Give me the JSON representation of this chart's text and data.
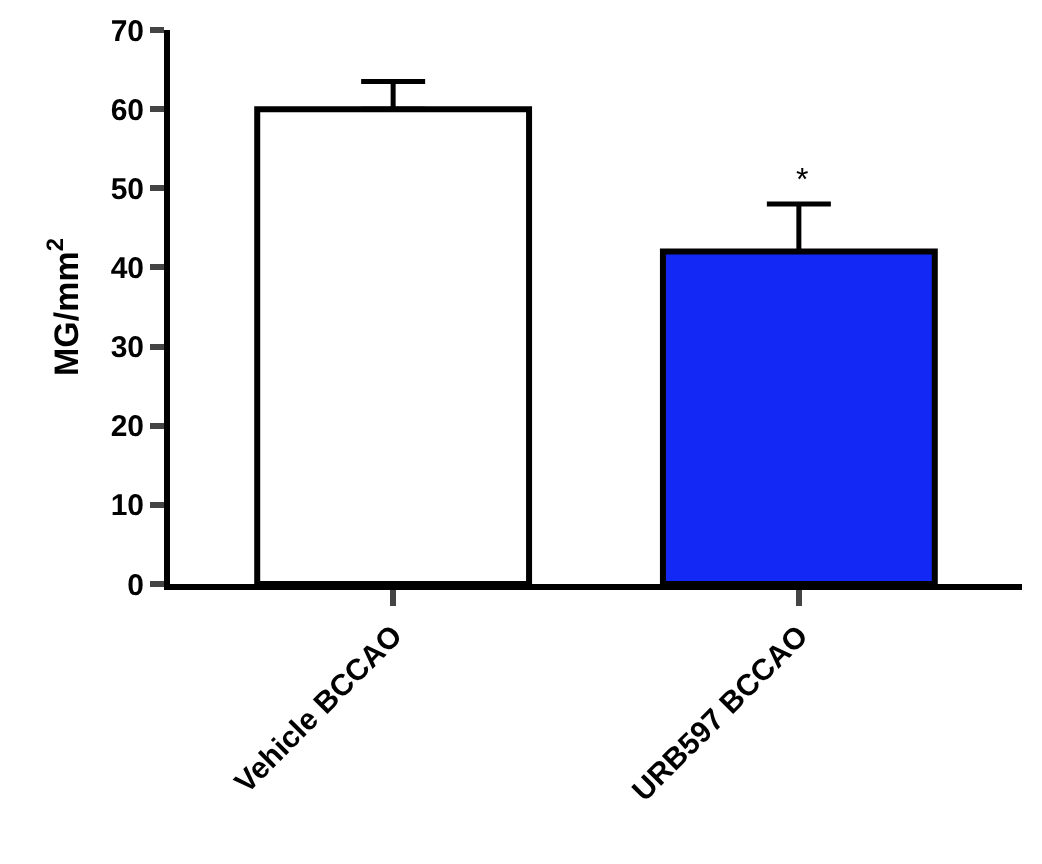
{
  "chart_data": {
    "type": "bar",
    "ylabel": "MG/mm$^{2}$",
    "categories": [
      "Vehicle BCCAO",
      "URB597 BCCAO"
    ],
    "values": [
      60,
      42
    ],
    "colors": [
      "#ffffff",
      "#1428f5"
    ],
    "errors": [
      [
        60,
        63.5
      ],
      [
        42,
        48
      ]
    ],
    "ylim": [
      0,
      70
    ],
    "yticks": [
      0,
      10,
      20,
      30,
      40,
      50,
      60,
      70
    ],
    "grid": false,
    "annotations": [
      "*"
    ]
  }
}
